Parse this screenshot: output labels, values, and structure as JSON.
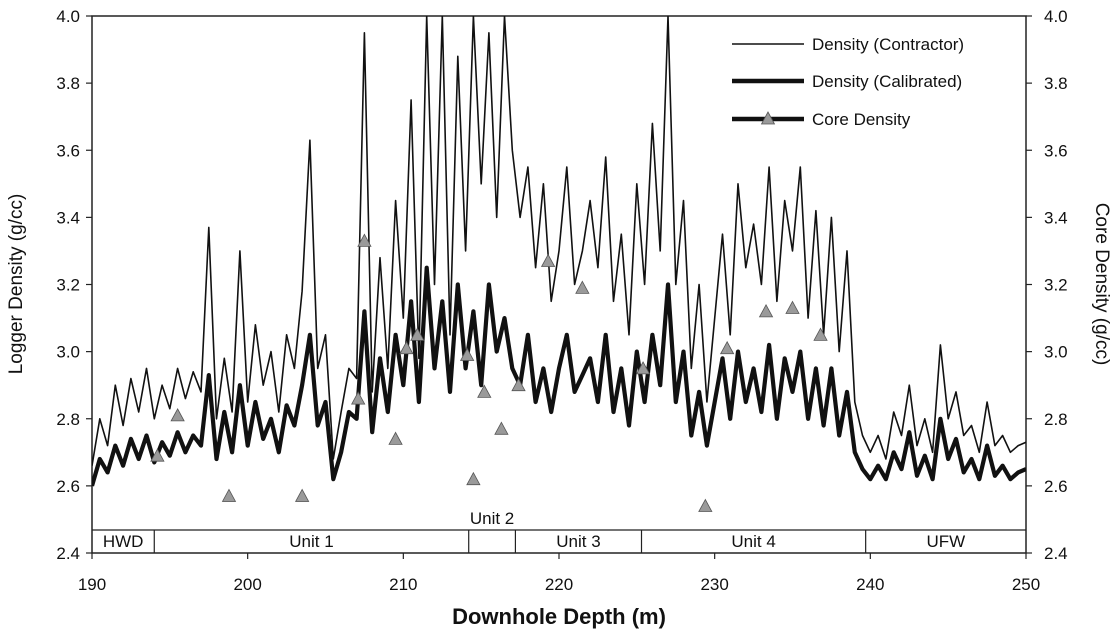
{
  "chart_data": {
    "type": "line",
    "xlabel": "Downhole Depth (m)",
    "ylabel_left": "Logger Density (g/cc)",
    "ylabel_right": "Core Density (g/cc)",
    "xlim": [
      190,
      250
    ],
    "ylim": [
      2.4,
      4.0
    ],
    "x_ticks": [
      "190",
      "200",
      "210",
      "220",
      "230",
      "240",
      "250"
    ],
    "y_ticks": [
      "2.4",
      "2.6",
      "2.8",
      "3.0",
      "3.2",
      "3.4",
      "3.6",
      "3.8",
      "4.0"
    ],
    "grid": false,
    "legend_position": "top-right",
    "units": [
      {
        "label": "HWD",
        "start": 190,
        "end": 194
      },
      {
        "label": "Unit 1",
        "start": 194,
        "end": 214.2
      },
      {
        "label": "Unit 2",
        "start": 214.2,
        "end": 217.2
      },
      {
        "label": "Unit 3",
        "start": 217.2,
        "end": 225.3
      },
      {
        "label": "Unit 4",
        "start": 225.3,
        "end": 239.7
      },
      {
        "label": "UFW",
        "start": 239.7,
        "end": 250
      }
    ],
    "series": [
      {
        "name": "Density (Contractor)",
        "x": [
          190,
          190.5,
          191,
          191.5,
          192,
          192.5,
          193,
          193.5,
          194,
          194.5,
          195,
          195.5,
          196,
          196.5,
          197,
          197.5,
          198,
          198.5,
          199,
          199.5,
          200,
          200.5,
          201,
          201.5,
          202,
          202.5,
          203,
          203.5,
          204,
          204.5,
          205,
          205.5,
          206,
          206.5,
          207,
          207.5,
          208,
          208.5,
          209,
          209.5,
          210,
          210.5,
          211,
          211.5,
          212,
          212.5,
          213,
          213.5,
          214,
          214.5,
          215,
          215.5,
          216,
          216.5,
          217,
          217.5,
          218,
          218.5,
          219,
          219.5,
          220,
          220.5,
          221,
          221.5,
          222,
          222.5,
          223,
          223.5,
          224,
          224.5,
          225,
          225.5,
          226,
          226.5,
          227,
          227.5,
          228,
          228.5,
          229,
          229.5,
          230,
          230.5,
          231,
          231.5,
          232,
          232.5,
          233,
          233.5,
          234,
          234.5,
          235,
          235.5,
          236,
          236.5,
          237,
          237.5,
          238,
          238.5,
          239,
          239.5,
          240,
          240.5,
          241,
          241.5,
          242,
          242.5,
          243,
          243.5,
          244,
          244.5,
          245,
          245.5,
          246,
          246.5,
          247,
          247.5,
          248,
          248.5,
          249,
          249.5,
          250
        ],
        "values": [
          2.66,
          2.8,
          2.72,
          2.9,
          2.78,
          2.92,
          2.82,
          2.95,
          2.8,
          2.9,
          2.83,
          2.95,
          2.86,
          2.94,
          2.88,
          3.37,
          2.8,
          2.98,
          2.82,
          3.3,
          2.85,
          3.08,
          2.9,
          3.0,
          2.82,
          3.05,
          2.95,
          3.18,
          3.63,
          2.95,
          3.05,
          2.68,
          2.82,
          2.95,
          2.92,
          3.95,
          2.88,
          3.28,
          2.95,
          3.45,
          3.1,
          3.75,
          2.98,
          4.0,
          3.2,
          4.0,
          3.05,
          3.88,
          3.3,
          4.0,
          3.5,
          3.95,
          3.4,
          4.0,
          3.6,
          3.4,
          3.55,
          3.25,
          3.5,
          3.15,
          3.3,
          3.55,
          3.2,
          3.3,
          3.45,
          3.25,
          3.58,
          3.15,
          3.35,
          3.05,
          3.5,
          3.2,
          3.68,
          3.3,
          4.0,
          3.2,
          3.45,
          2.95,
          3.2,
          2.85,
          3.1,
          3.35,
          3.05,
          3.5,
          3.25,
          3.38,
          3.2,
          3.55,
          3.15,
          3.45,
          3.3,
          3.55,
          3.1,
          3.42,
          3.05,
          3.4,
          3.0,
          3.3,
          2.85,
          2.75,
          2.7,
          2.75,
          2.68,
          2.82,
          2.75,
          2.9,
          2.72,
          2.8,
          2.7,
          3.02,
          2.8,
          2.88,
          2.75,
          2.78,
          2.7,
          2.85,
          2.72,
          2.75,
          2.7,
          2.72,
          2.73
        ]
      },
      {
        "name": "Density (Calibrated)",
        "x": [
          190,
          190.5,
          191,
          191.5,
          192,
          192.5,
          193,
          193.5,
          194,
          194.5,
          195,
          195.5,
          196,
          196.5,
          197,
          197.5,
          198,
          198.5,
          199,
          199.5,
          200,
          200.5,
          201,
          201.5,
          202,
          202.5,
          203,
          203.5,
          204,
          204.5,
          205,
          205.5,
          206,
          206.5,
          207,
          207.5,
          208,
          208.5,
          209,
          209.5,
          210,
          210.5,
          211,
          211.5,
          212,
          212.5,
          213,
          213.5,
          214,
          214.5,
          215,
          215.5,
          216,
          216.5,
          217,
          217.5,
          218,
          218.5,
          219,
          219.5,
          220,
          220.5,
          221,
          221.5,
          222,
          222.5,
          223,
          223.5,
          224,
          224.5,
          225,
          225.5,
          226,
          226.5,
          227,
          227.5,
          228,
          228.5,
          229,
          229.5,
          230,
          230.5,
          231,
          231.5,
          232,
          232.5,
          233,
          233.5,
          234,
          234.5,
          235,
          235.5,
          236,
          236.5,
          237,
          237.5,
          238,
          238.5,
          239,
          239.5,
          240,
          240.5,
          241,
          241.5,
          242,
          242.5,
          243,
          243.5,
          244,
          244.5,
          245,
          245.5,
          246,
          246.5,
          247,
          247.5,
          248,
          248.5,
          249,
          249.5,
          250
        ],
        "values": [
          2.6,
          2.68,
          2.64,
          2.72,
          2.66,
          2.74,
          2.68,
          2.75,
          2.67,
          2.73,
          2.69,
          2.76,
          2.7,
          2.75,
          2.72,
          2.93,
          2.68,
          2.82,
          2.7,
          2.9,
          2.72,
          2.85,
          2.74,
          2.8,
          2.7,
          2.84,
          2.78,
          2.9,
          3.05,
          2.78,
          2.85,
          2.62,
          2.7,
          2.82,
          2.8,
          3.12,
          2.76,
          2.98,
          2.82,
          3.05,
          2.9,
          3.15,
          2.85,
          3.25,
          2.95,
          3.15,
          2.88,
          3.2,
          2.95,
          3.12,
          2.9,
          3.2,
          3.0,
          3.1,
          2.95,
          2.9,
          3.05,
          2.85,
          2.95,
          2.82,
          2.95,
          3.05,
          2.88,
          2.93,
          2.98,
          2.85,
          3.05,
          2.82,
          2.95,
          2.78,
          3.0,
          2.85,
          3.05,
          2.9,
          3.2,
          2.85,
          3.0,
          2.75,
          2.88,
          2.72,
          2.85,
          2.98,
          2.8,
          3.0,
          2.85,
          2.95,
          2.82,
          3.02,
          2.8,
          2.98,
          2.88,
          3.0,
          2.8,
          2.95,
          2.78,
          2.95,
          2.75,
          2.88,
          2.7,
          2.65,
          2.62,
          2.66,
          2.62,
          2.7,
          2.65,
          2.76,
          2.63,
          2.69,
          2.62,
          2.8,
          2.68,
          2.74,
          2.64,
          2.68,
          2.62,
          2.72,
          2.63,
          2.66,
          2.62,
          2.64,
          2.65
        ]
      },
      {
        "name": "Core Density",
        "x": [
          194.2,
          195.5,
          198.8,
          203.5,
          207.1,
          207.5,
          209.5,
          210.2,
          210.9,
          214.1,
          214.5,
          215.2,
          216.3,
          217.4,
          219.3,
          221.5,
          225.4,
          229.4,
          230.8,
          233.3,
          235.0,
          236.8
        ],
        "values": [
          2.69,
          2.81,
          2.57,
          2.57,
          2.86,
          3.33,
          2.74,
          3.01,
          3.05,
          2.99,
          2.62,
          2.88,
          2.77,
          2.9,
          3.27,
          3.19,
          2.95,
          2.54,
          3.01,
          3.12,
          3.13,
          3.05
        ]
      }
    ]
  }
}
